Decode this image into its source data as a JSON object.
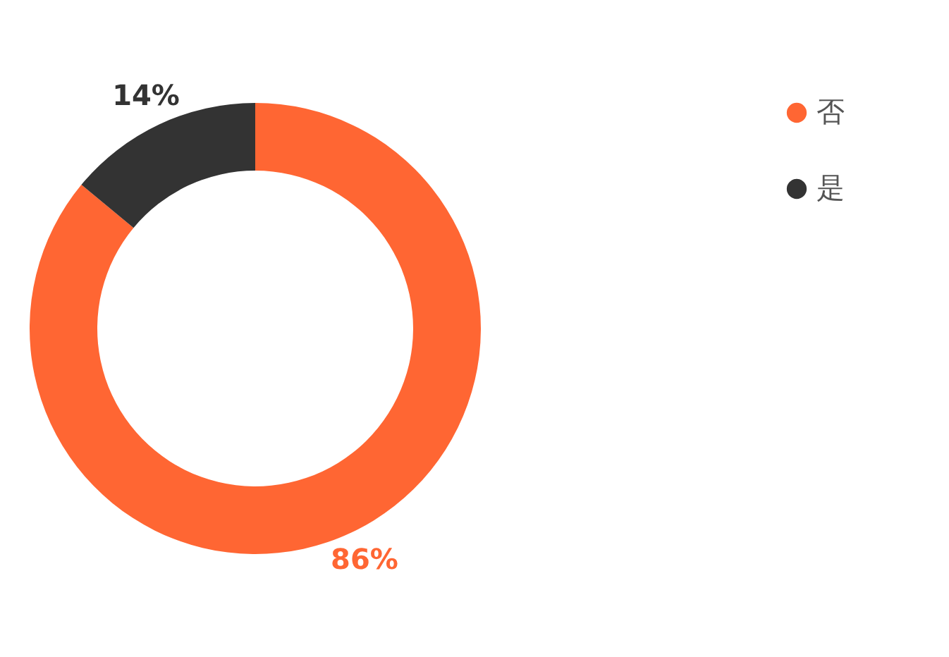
{
  "chart_data": {
    "type": "donut",
    "categories": [
      "否",
      "是"
    ],
    "values": [
      86,
      14
    ],
    "colors": [
      "#ff6633",
      "#333333"
    ],
    "value_labels": [
      "86%",
      "14%"
    ],
    "legend": "top right"
  }
}
